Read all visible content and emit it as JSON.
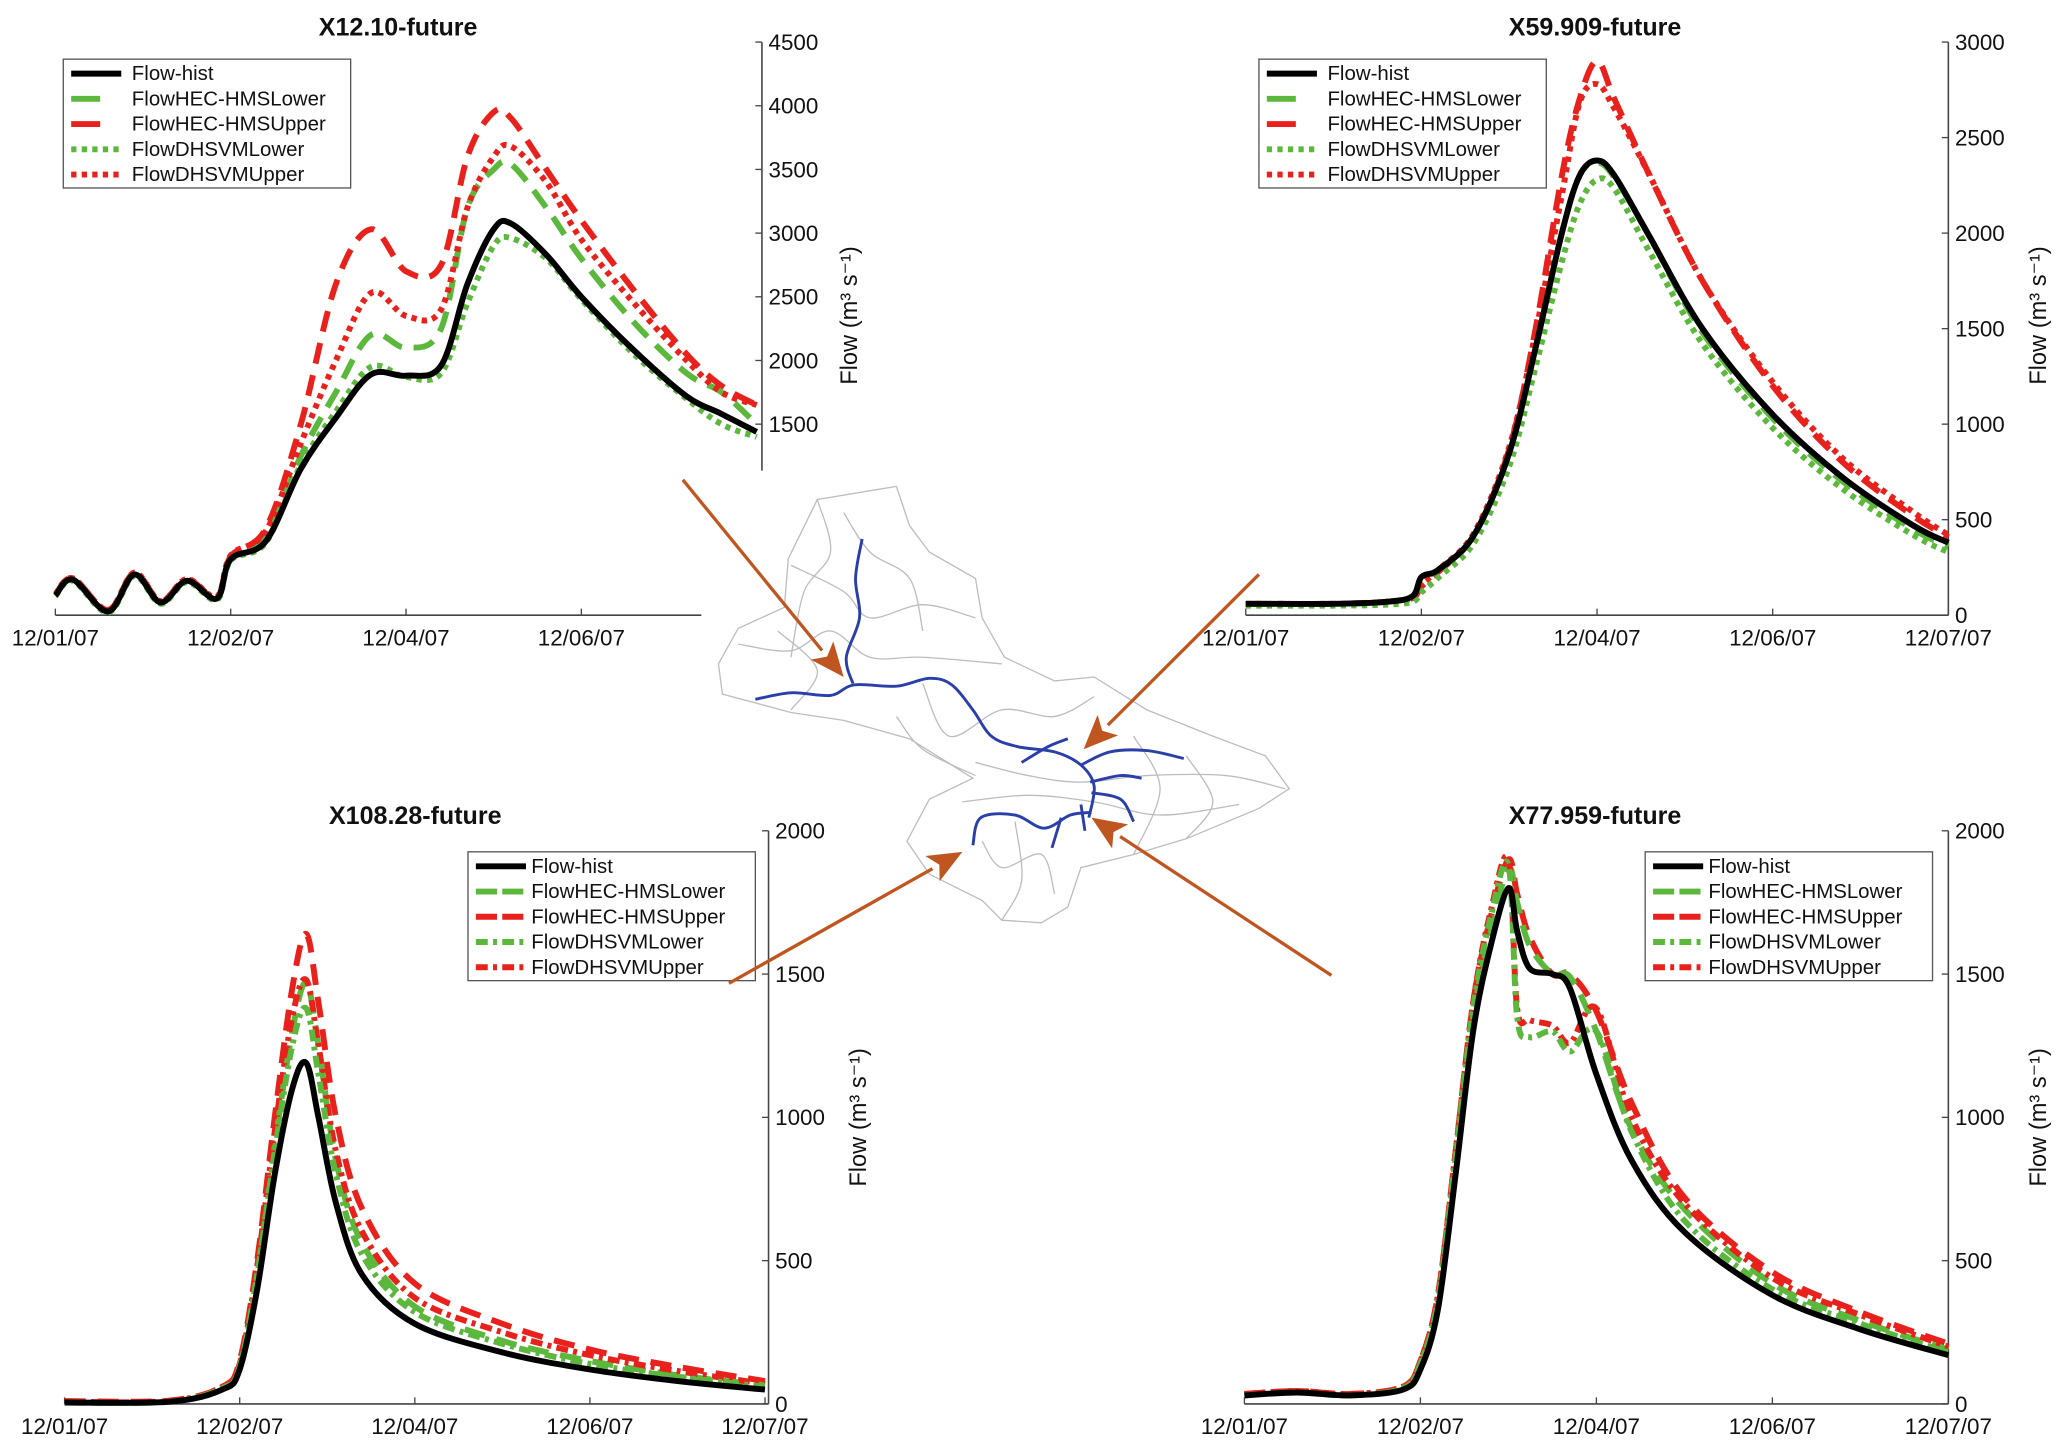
{
  "figure": {
    "map_label": "watershed-map"
  },
  "colors": {
    "hist": "#000000",
    "lower": "#5cb83c",
    "upper": "#e8211c",
    "arrow": "#c0561f",
    "river": "#2a3fa8",
    "basin": "#bdbdbd"
  },
  "chart_data": [
    {
      "type": "line",
      "title": "X12.10-future",
      "ylabel": "Flow (m³ s⁻¹)",
      "xlabel": "",
      "xlim": [
        0,
        4.03
      ],
      "ylim": [
        0,
        4500
      ],
      "xticks": [
        0,
        1,
        2,
        3
      ],
      "xtick_labels": [
        "12/01/07",
        "12/02/07",
        "12/04/07",
        "12/06/07"
      ],
      "yticks": [
        1500,
        2000,
        2500,
        3000,
        3500,
        4000,
        4500
      ],
      "ytick_labels": [
        "1500",
        "2000",
        "2500",
        "3000",
        "3500",
        "4000",
        "4500"
      ],
      "legend": "top-left",
      "x": [
        0,
        0.1,
        0.3,
        0.45,
        0.6,
        0.75,
        0.92,
        1.0,
        1.2,
        1.4,
        1.6,
        1.8,
        2.0,
        2.2,
        2.35,
        2.5,
        2.6,
        2.8,
        3.0,
        3.3,
        3.6,
        3.8,
        4.0
      ],
      "series": [
        {
          "name": "Flow-hist",
          "values": [
            155,
            280,
            30,
            320,
            100,
            270,
            130,
            440,
            580,
            1150,
            1550,
            1890,
            1880,
            1960,
            2600,
            3030,
            3075,
            2830,
            2500,
            2080,
            1720,
            1580,
            1440
          ]
        },
        {
          "name": "FlowHEC-HMSLower",
          "values": [
            155,
            280,
            30,
            320,
            100,
            270,
            130,
            440,
            600,
            1250,
            1750,
            2200,
            2100,
            2250,
            3200,
            3500,
            3540,
            3200,
            2800,
            2300,
            1900,
            1750,
            1500
          ]
        },
        {
          "name": "FlowHEC-HMSUpper",
          "values": [
            160,
            290,
            40,
            330,
            110,
            280,
            140,
            460,
            680,
            1500,
            2600,
            3030,
            2700,
            2750,
            3600,
            3950,
            3900,
            3500,
            3100,
            2550,
            2050,
            1800,
            1650
          ]
        },
        {
          "name": "FlowDHSVMLower",
          "values": [
            150,
            270,
            20,
            310,
            90,
            260,
            120,
            430,
            570,
            1180,
            1600,
            1950,
            1870,
            1900,
            2450,
            2900,
            2960,
            2800,
            2480,
            2050,
            1700,
            1500,
            1400
          ]
        },
        {
          "name": "FlowDHSVMUpper",
          "values": [
            165,
            290,
            40,
            335,
            110,
            285,
            145,
            470,
            660,
            1350,
            2000,
            2530,
            2350,
            2400,
            3200,
            3600,
            3680,
            3400,
            2950,
            2450,
            2000,
            1750,
            1650
          ]
        }
      ]
    },
    {
      "type": "line",
      "title": "X59.909-future",
      "ylabel": "Flow (m³ s⁻¹)",
      "xlabel": "",
      "xlim": [
        0,
        4
      ],
      "ylim": [
        0,
        3000
      ],
      "xticks": [
        0,
        1,
        2,
        3,
        4
      ],
      "xtick_labels": [
        "12/01/07",
        "12/02/07",
        "12/04/07",
        "12/06/07",
        "12/07/07"
      ],
      "yticks": [
        0,
        500,
        1000,
        1500,
        2000,
        2500,
        3000
      ],
      "ytick_labels": [
        "0",
        "500",
        "1000",
        "1500",
        "2000",
        "2500",
        "3000"
      ],
      "legend": "top-left",
      "x": [
        0,
        0.5,
        0.8,
        0.95,
        1.0,
        1.1,
        1.3,
        1.5,
        1.65,
        1.8,
        1.9,
        2.0,
        2.1,
        2.3,
        2.6,
        3.0,
        3.4,
        3.8,
        4.0
      ],
      "series": [
        {
          "name": "Flow-hist",
          "values": [
            60,
            60,
            70,
            100,
            200,
            240,
            420,
            850,
            1400,
            2000,
            2300,
            2380,
            2300,
            1980,
            1500,
            1050,
            720,
            470,
            380
          ]
        },
        {
          "name": "FlowHEC-HMSLower",
          "values": [
            60,
            60,
            70,
            100,
            190,
            240,
            420,
            850,
            1400,
            2000,
            2300,
            2370,
            2290,
            1980,
            1480,
            1030,
            700,
            450,
            360
          ]
        },
        {
          "name": "FlowHEC-HMSUpper",
          "values": [
            60,
            60,
            70,
            90,
            150,
            230,
            420,
            870,
            1500,
            2300,
            2700,
            2900,
            2700,
            2300,
            1750,
            1200,
            800,
            520,
            410
          ]
        },
        {
          "name": "FlowDHSVMLower",
          "values": [
            50,
            50,
            55,
            70,
            120,
            200,
            380,
            780,
            1300,
            1850,
            2150,
            2280,
            2230,
            1900,
            1420,
            980,
            660,
            420,
            330
          ]
        },
        {
          "name": "FlowDHSVMUpper",
          "values": [
            60,
            60,
            70,
            90,
            160,
            240,
            430,
            880,
            1480,
            2200,
            2680,
            2780,
            2650,
            2300,
            1750,
            1220,
            820,
            540,
            420
          ]
        }
      ]
    },
    {
      "type": "line",
      "title": "X108.28-future",
      "ylabel": "Flow (m³ s⁻¹)",
      "xlabel": "",
      "xlim": [
        0,
        4.02
      ],
      "ylim": [
        0,
        2000
      ],
      "xticks": [
        0,
        1,
        2,
        3,
        4
      ],
      "xtick_labels": [
        "12/01/07",
        "12/02/07",
        "12/04/07",
        "12/06/07",
        "12/07/07"
      ],
      "yticks": [
        0,
        500,
        1000,
        1500,
        2000
      ],
      "ytick_labels": [
        "0",
        "500",
        "1000",
        "1500",
        "2000"
      ],
      "legend": "top-right",
      "x": [
        0,
        0.6,
        0.9,
        1.0,
        1.1,
        1.2,
        1.3,
        1.38,
        1.45,
        1.55,
        1.7,
        2.0,
        2.5,
        3.0,
        3.5,
        4.0
      ],
      "series": [
        {
          "name": "Flow-hist",
          "values": [
            5,
            8,
            50,
            120,
            400,
            800,
            1100,
            1190,
            1000,
            700,
            450,
            280,
            180,
            120,
            80,
            50
          ]
        },
        {
          "name": "FlowHEC-HMSLower",
          "values": [
            5,
            8,
            55,
            130,
            450,
            900,
            1300,
            1470,
            1250,
            850,
            560,
            340,
            220,
            150,
            100,
            65
          ]
        },
        {
          "name": "FlowHEC-HMSUpper",
          "values": [
            10,
            12,
            60,
            150,
            500,
            1000,
            1450,
            1640,
            1400,
            1000,
            680,
            420,
            280,
            190,
            130,
            80
          ]
        },
        {
          "name": "FlowDHSVMLower",
          "values": [
            5,
            8,
            55,
            130,
            450,
            880,
            1250,
            1380,
            1150,
            800,
            520,
            320,
            210,
            140,
            95,
            60
          ]
        },
        {
          "name": "FlowDHSVMUpper",
          "values": [
            8,
            10,
            60,
            140,
            480,
            950,
            1350,
            1480,
            1250,
            880,
            600,
            370,
            250,
            170,
            115,
            70
          ]
        }
      ]
    },
    {
      "type": "line",
      "title": "X77.959-future",
      "ylabel": "Flow (m³ s⁻¹)",
      "xlabel": "",
      "xlim": [
        0,
        4
      ],
      "ylim": [
        0,
        2000
      ],
      "xticks": [
        0,
        1,
        2,
        3,
        4
      ],
      "xtick_labels": [
        "12/01/07",
        "12/02/07",
        "12/04/07",
        "12/06/07",
        "12/07/07"
      ],
      "yticks": [
        0,
        500,
        1000,
        1500,
        2000
      ],
      "ytick_labels": [
        "0",
        "500",
        "1000",
        "1500",
        "2000"
      ],
      "legend": "top-right",
      "x": [
        0,
        0.3,
        0.6,
        0.9,
        1.0,
        1.1,
        1.2,
        1.3,
        1.4,
        1.5,
        1.55,
        1.62,
        1.75,
        1.85,
        2.0,
        2.2,
        2.5,
        3.0,
        3.5,
        4.0
      ],
      "series": [
        {
          "name": "Flow-hist",
          "values": [
            30,
            40,
            30,
            50,
            120,
            330,
            800,
            1300,
            1600,
            1800,
            1650,
            1520,
            1500,
            1450,
            1150,
            850,
            600,
            380,
            260,
            170
          ]
        },
        {
          "name": "FlowHEC-HMSLower",
          "values": [
            30,
            40,
            30,
            55,
            140,
            360,
            850,
            1350,
            1650,
            1870,
            1750,
            1600,
            1500,
            1490,
            1300,
            960,
            680,
            420,
            290,
            190
          ]
        },
        {
          "name": "FlowHEC-HMSUpper",
          "values": [
            35,
            45,
            35,
            60,
            150,
            380,
            880,
            1400,
            1700,
            1900,
            1780,
            1630,
            1500,
            1500,
            1370,
            1050,
            720,
            460,
            320,
            210
          ]
        },
        {
          "name": "FlowDHSVMLower",
          "values": [
            30,
            40,
            30,
            55,
            140,
            360,
            860,
            1380,
            1700,
            1880,
            1350,
            1280,
            1300,
            1230,
            1300,
            950,
            640,
            400,
            280,
            180
          ]
        },
        {
          "name": "FlowDHSVMUpper",
          "values": [
            35,
            45,
            35,
            60,
            150,
            380,
            880,
            1400,
            1720,
            1900,
            1380,
            1340,
            1320,
            1260,
            1380,
            1000,
            700,
            440,
            310,
            200
          ]
        }
      ]
    }
  ]
}
